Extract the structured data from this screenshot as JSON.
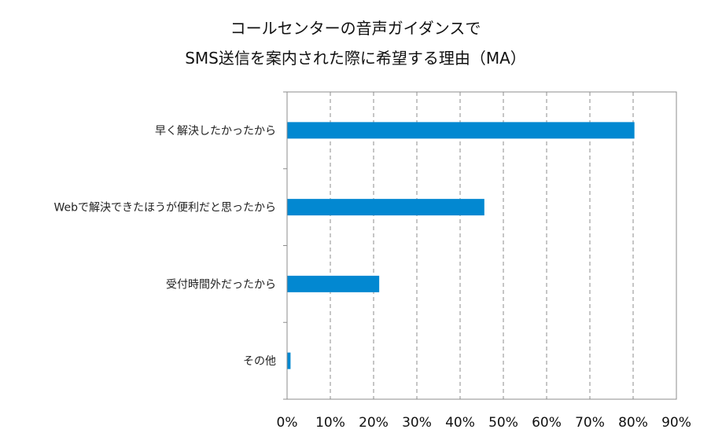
{
  "chart_data": {
    "type": "bar",
    "orientation": "horizontal",
    "title": [
      "コールセンターの音声ガイダンスで",
      "SMS送信を案内された際に希望する理由（MA）"
    ],
    "categories": [
      "早く解決したかったから",
      "Webで解決できたほうが便利だと思ったから",
      "受付時間外だったから",
      "その他"
    ],
    "values": [
      80.3,
      45.6,
      21.3,
      0.8
    ],
    "xlim": [
      0,
      90
    ],
    "xticks": [
      "0%",
      "10%",
      "20%",
      "30%",
      "40%",
      "50%",
      "60%",
      "70%",
      "80%",
      "90%"
    ],
    "xlabel": "",
    "ylabel": "",
    "grid": "vertical-dashed",
    "bar_color": "#0288D1"
  }
}
